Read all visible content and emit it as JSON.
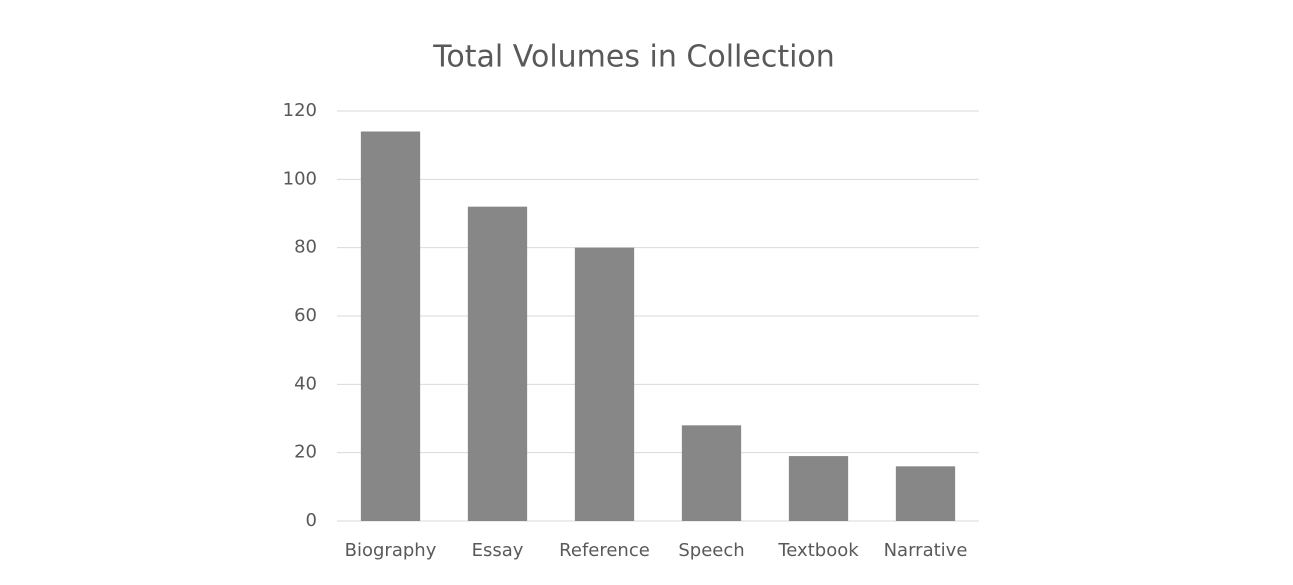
{
  "chart_data": {
    "type": "bar",
    "title": "Total Volumes in Collection",
    "categories": [
      "Biography",
      "Essay",
      "Reference",
      "Speech",
      "Textbook",
      "Narrative"
    ],
    "values": [
      114,
      92,
      80,
      28,
      19,
      16
    ],
    "color": "#878787",
    "ylim": [
      0,
      120
    ],
    "yticks": [
      0,
      20,
      40,
      60,
      80,
      100,
      120
    ],
    "grid": true
  }
}
